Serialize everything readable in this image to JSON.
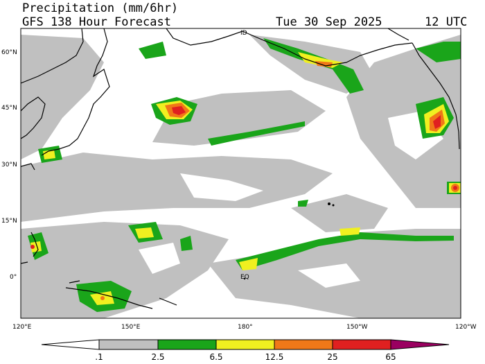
{
  "header": {
    "title": "Precipitation (mm/6hr)",
    "subtitle": "GFS 138 Hour Forecast",
    "date": "Tue 30 Sep 2025",
    "time": "12 UTC"
  },
  "map": {
    "lat_labels": [
      "60°N",
      "45°N",
      "30°N",
      "15°N",
      "0°"
    ],
    "lon_labels": [
      "120°E",
      "150°E",
      "180°",
      "150°W",
      "120°W"
    ],
    "annotations": [
      "ID",
      "EQ"
    ],
    "colors": {
      "frame": "#000000",
      "light_rain": "#c0c0c0",
      "green": "#1aa51a",
      "yellow": "#f0f020",
      "orange": "#f07818",
      "red": "#e02020"
    }
  },
  "colorbar": {
    "labels": [
      ".1",
      "2.5",
      "6.5",
      "12.5",
      "25",
      "65"
    ],
    "colors": [
      "#ffffff",
      "#c0c0c0",
      "#1aa51a",
      "#f0f020",
      "#f07818",
      "#e02020",
      "#9a0060"
    ]
  }
}
